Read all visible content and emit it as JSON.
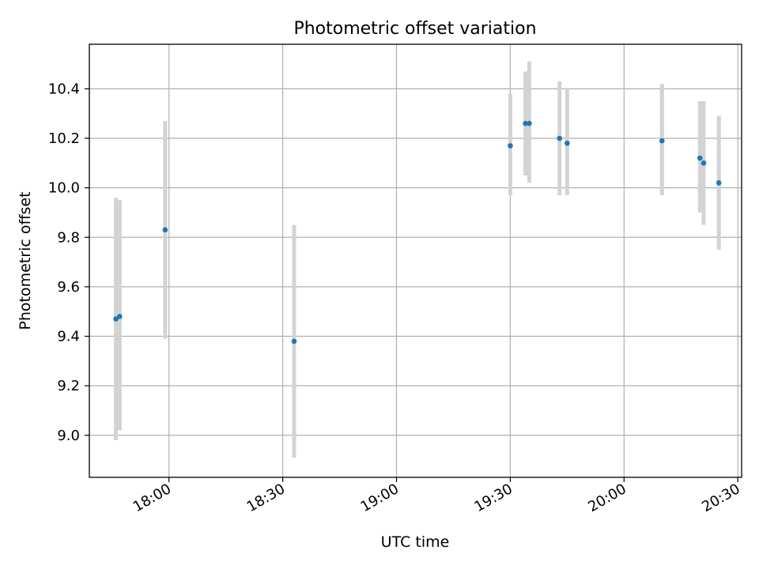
{
  "chart_data": {
    "type": "scatter",
    "title": "Photometric offset variation",
    "xlabel": "UTC time",
    "ylabel": "Photometric offset",
    "x_unit": "UTC time (HH:MM)",
    "xlim": [
      "17:39",
      "20:31"
    ],
    "ylim": [
      8.83,
      10.58
    ],
    "xticks": [
      "18:00",
      "18:30",
      "19:00",
      "19:30",
      "20:00",
      "20:30"
    ],
    "yticks": [
      9.0,
      9.2,
      9.4,
      9.6,
      9.8,
      10.0,
      10.2,
      10.4
    ],
    "grid": true,
    "marker_color": "#1f77b4",
    "errorbar_color": "#d3d3d3",
    "points": [
      {
        "x": "17:46",
        "y": 9.47,
        "ylow": 8.98,
        "yhigh": 9.96
      },
      {
        "x": "17:47",
        "y": 9.48,
        "ylow": 9.02,
        "yhigh": 9.95
      },
      {
        "x": "17:59",
        "y": 9.83,
        "ylow": 9.39,
        "yhigh": 10.27
      },
      {
        "x": "18:33",
        "y": 9.38,
        "ylow": 8.91,
        "yhigh": 9.85
      },
      {
        "x": "19:30",
        "y": 10.17,
        "ylow": 9.97,
        "yhigh": 10.38
      },
      {
        "x": "19:34",
        "y": 10.26,
        "ylow": 10.05,
        "yhigh": 10.47
      },
      {
        "x": "19:35",
        "y": 10.26,
        "ylow": 10.02,
        "yhigh": 10.51
      },
      {
        "x": "19:43",
        "y": 10.2,
        "ylow": 9.97,
        "yhigh": 10.43
      },
      {
        "x": "19:45",
        "y": 10.18,
        "ylow": 9.97,
        "yhigh": 10.4
      },
      {
        "x": "20:10",
        "y": 10.19,
        "ylow": 9.97,
        "yhigh": 10.42
      },
      {
        "x": "20:20",
        "y": 10.12,
        "ylow": 9.9,
        "yhigh": 10.35
      },
      {
        "x": "20:21",
        "y": 10.1,
        "ylow": 9.85,
        "yhigh": 10.35
      },
      {
        "x": "20:25",
        "y": 10.02,
        "ylow": 9.75,
        "yhigh": 10.29
      }
    ]
  }
}
